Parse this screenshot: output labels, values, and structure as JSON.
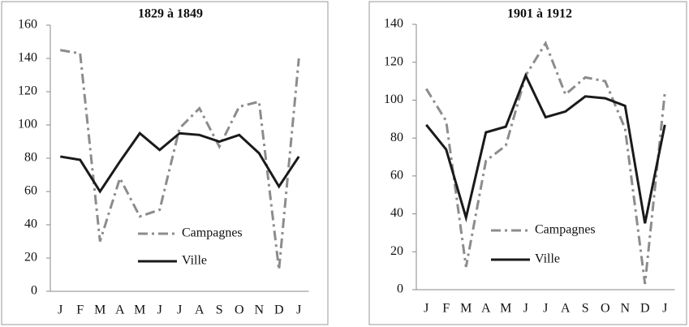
{
  "chart_data": [
    {
      "type": "line",
      "title": "1829 à 1849",
      "categories": [
        "J",
        "F",
        "M",
        "A",
        "M",
        "J",
        "J",
        "A",
        "S",
        "O",
        "N",
        "D",
        "J"
      ],
      "series": [
        {
          "name": "Campagnes",
          "color": "#8c8c8c",
          "dash": "dash-dot",
          "values": [
            145,
            143,
            30,
            68,
            45,
            49,
            98,
            110,
            87,
            111,
            114,
            13,
            140
          ]
        },
        {
          "name": "Ville",
          "color": "#1a1a1a",
          "dash": "solid",
          "values": [
            81,
            79,
            60,
            78,
            95,
            85,
            95,
            94,
            90,
            94,
            83,
            63,
            81
          ]
        }
      ],
      "ylim": [
        0,
        160
      ],
      "yticks": [
        0,
        20,
        40,
        60,
        80,
        100,
        120,
        140,
        160
      ],
      "grid": false
    },
    {
      "type": "line",
      "title": "1901 à 1912",
      "categories": [
        "J",
        "F",
        "M",
        "A",
        "M",
        "J",
        "J",
        "A",
        "S",
        "O",
        "N",
        "D",
        "J"
      ],
      "series": [
        {
          "name": "Campagnes",
          "color": "#8c8c8c",
          "dash": "dash-dot",
          "values": [
            106,
            89,
            12,
            68,
            76,
            113,
            130,
            103,
            112,
            110,
            85,
            3,
            104
          ]
        },
        {
          "name": "Ville",
          "color": "#1a1a1a",
          "dash": "solid",
          "values": [
            87,
            74,
            38,
            83,
            86,
            113,
            91,
            94,
            102,
            101,
            97,
            35,
            87
          ]
        }
      ],
      "ylim": [
        0,
        140
      ],
      "yticks": [
        0,
        20,
        40,
        60,
        80,
        100,
        120,
        140
      ],
      "grid": false
    }
  ]
}
